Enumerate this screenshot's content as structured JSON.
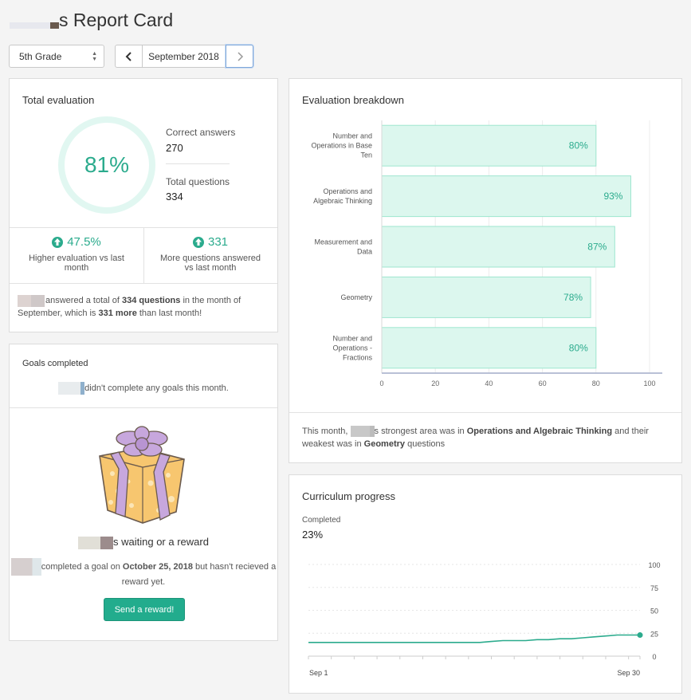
{
  "page": {
    "title": "s Report Card",
    "grade": "5th Grade",
    "month": "September 2018"
  },
  "total_evaluation": {
    "title": "Total evaluation",
    "percent": "81%",
    "correct_label": "Correct answers",
    "correct_value": "270",
    "total_label": "Total questions",
    "total_value": "334",
    "metric1_value": "47.5%",
    "metric1_label": "Higher evaluation vs last month",
    "metric2_value": "331",
    "metric2_label": "More questions answered vs last month",
    "summary": {
      "part1": "answered a total of",
      "questions": "334 questions",
      "part2": "in the month of September, which is",
      "more": "331 more",
      "part3": "than last month!"
    }
  },
  "goals": {
    "title": "Goals completed",
    "message": "didn't complete any goals this month.",
    "waiting_title": "s waiting or a reward",
    "waiting_part1": "completed a goal on",
    "waiting_date": "October 25, 2018",
    "waiting_part2": "but hasn't recieved a reward yet.",
    "button": "Send a reward!"
  },
  "breakdown": {
    "title": "Evaluation breakdown",
    "summary": {
      "part1": "This month,",
      "part2": "s strongest area was in",
      "strongest": "Operations and Algebraic Thinking",
      "part3": "and their weakest was in",
      "weakest": "Geometry",
      "part4": "questions"
    }
  },
  "curriculum": {
    "title": "Curriculum progress",
    "completed_label": "Completed",
    "completed_value": "23%"
  },
  "colors": {
    "accent": "#2bab8d",
    "bar_fill": "#dcf7ee",
    "bar_stroke": "#9ee6cf"
  },
  "chart_data": [
    {
      "type": "bar",
      "orientation": "horizontal",
      "categories": [
        "Number and Operations in Base Ten",
        "Operations and Algebraic Thinking",
        "Measurement and Data",
        "Geometry",
        "Number and Operations - Fractions"
      ],
      "category_lines": [
        [
          "Number and",
          "Operations in Base",
          "Ten"
        ],
        [
          "Operations and",
          "Algebraic Thinking"
        ],
        [
          "Measurement and",
          "Data"
        ],
        [
          "Geometry"
        ],
        [
          "Number and",
          "Operations -",
          "Fractions"
        ]
      ],
      "values": [
        80,
        93,
        87,
        78,
        80
      ],
      "value_labels": [
        "80%",
        "93%",
        "87%",
        "78%",
        "80%"
      ],
      "xlim": [
        0,
        100
      ],
      "xticks": [
        0,
        20,
        40,
        60,
        80,
        100
      ],
      "grid": true
    },
    {
      "type": "line",
      "x_labels": [
        "Sep 1",
        "Sep 30"
      ],
      "x": [
        1,
        2,
        3,
        4,
        5,
        6,
        7,
        8,
        9,
        10,
        11,
        12,
        13,
        14,
        15,
        16,
        17,
        18,
        19,
        20,
        21,
        22,
        23,
        24,
        25,
        26,
        27,
        28,
        29,
        30
      ],
      "values": [
        15,
        15,
        15,
        15,
        15,
        15,
        15,
        15,
        15,
        15,
        15,
        15,
        15,
        15,
        15,
        15,
        16,
        17,
        17,
        17,
        18,
        18,
        19,
        19,
        20,
        21,
        22,
        23,
        23,
        23
      ],
      "ylim": [
        0,
        100
      ],
      "yticks": [
        0,
        25,
        50,
        75,
        100
      ],
      "grid": true
    }
  ]
}
